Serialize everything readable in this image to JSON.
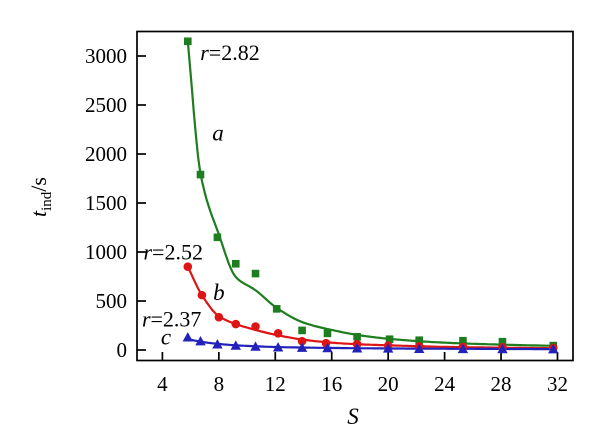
{
  "chart_data": {
    "type": "scatter",
    "title": "",
    "xlabel": "S",
    "ylabel_parts": {
      "main": "t",
      "sub": "ind",
      "unit": "/s"
    },
    "xlim": [
      2.2,
      33.1
    ],
    "ylim": [
      -107,
      3250
    ],
    "x_ticks": [
      4,
      8,
      12,
      16,
      20,
      24,
      28,
      32
    ],
    "y_ticks": [
      0,
      500,
      1000,
      1500,
      2000,
      2500,
      3000
    ],
    "grid": false,
    "legend_position": "none",
    "frame": "box",
    "axis_color": "#000000",
    "series": [
      {
        "name": "a",
        "r_value": "r=2.82",
        "marker": "square",
        "color": "#1e7d1e",
        "x": [
          5.8,
          6.7,
          7.9,
          9.2,
          10.6,
          12.1,
          13.9,
          15.7,
          17.8,
          20.1,
          22.2,
          25.3,
          28.1,
          31.7
        ],
        "y": [
          3150,
          1790,
          1150,
          880,
          780,
          420,
          200,
          170,
          135,
          110,
          100,
          95,
          85,
          45
        ],
        "fit_x": [
          5.8,
          6.7,
          8.0,
          9.2,
          10.6,
          12.1,
          14.0,
          16.0,
          18.0,
          20.0,
          24.0,
          28.0,
          31.9
        ],
        "fit_y": [
          3150,
          1800,
          1180,
          745,
          610,
          430,
          280,
          205,
          150,
          115,
          75,
          55,
          42
        ]
      },
      {
        "name": "b",
        "r_value": "r=2.52",
        "marker": "circle",
        "color": "#dd1515",
        "x": [
          5.8,
          6.8,
          8.0,
          9.2,
          10.6,
          12.2,
          13.9,
          15.6,
          17.8,
          20.0,
          22.2,
          25.3,
          28.1,
          31.7
        ],
        "y": [
          850,
          560,
          335,
          265,
          240,
          170,
          90,
          70,
          60,
          45,
          38,
          32,
          28,
          22
        ],
        "fit_x": [
          5.8,
          6.8,
          8.0,
          9.2,
          10.6,
          12.2,
          14.0,
          16.0,
          18.0,
          20.0,
          24.0,
          28.0,
          31.9
        ],
        "fit_y": [
          850,
          560,
          345,
          265,
          205,
          150,
          105,
          75,
          58,
          48,
          32,
          24,
          18
        ]
      },
      {
        "name": "c",
        "r_value": "r=2.37",
        "marker": "triangle",
        "color": "#2222bb",
        "x": [
          5.8,
          6.7,
          7.9,
          9.2,
          10.6,
          12.2,
          13.9,
          15.7,
          17.8,
          20.0,
          22.2,
          25.3,
          28.1,
          31.7
        ],
        "y": [
          130,
          90,
          58,
          45,
          35,
          28,
          24,
          20,
          18,
          16,
          13,
          11,
          10,
          9
        ],
        "fit_x": [
          5.8,
          6.7,
          8.0,
          9.2,
          10.6,
          12.2,
          14.0,
          16.0,
          18.0,
          20.0,
          24.0,
          28.0,
          31.9
        ],
        "fit_y": [
          112,
          85,
          62,
          48,
          38,
          30,
          25,
          21,
          18,
          16,
          13,
          11,
          9
        ]
      }
    ],
    "annotations": [
      {
        "id": "label-r-282",
        "italic": "r",
        "text": "=2.82",
        "x": 8.79,
        "y": 2960,
        "anchor": "middle",
        "size": 22
      },
      {
        "id": "label-a",
        "italic": "a",
        "text": "",
        "x": 7.94,
        "y": 2140,
        "anchor": "middle",
        "size": 23
      },
      {
        "id": "label-r-252",
        "italic": "r",
        "text": "=2.52",
        "x": 2.66,
        "y": 924,
        "anchor": "start",
        "size": 22
      },
      {
        "id": "label-b",
        "italic": "b",
        "text": "",
        "x": 8.0,
        "y": 510,
        "anchor": "middle",
        "size": 23
      },
      {
        "id": "label-r-237",
        "italic": "r",
        "text": "=2.37",
        "x": 2.55,
        "y": 240,
        "anchor": "start",
        "size": 22
      },
      {
        "id": "label-c",
        "italic": "c",
        "text": "",
        "x": 4.25,
        "y": 56,
        "anchor": "middle",
        "size": 23
      }
    ]
  }
}
